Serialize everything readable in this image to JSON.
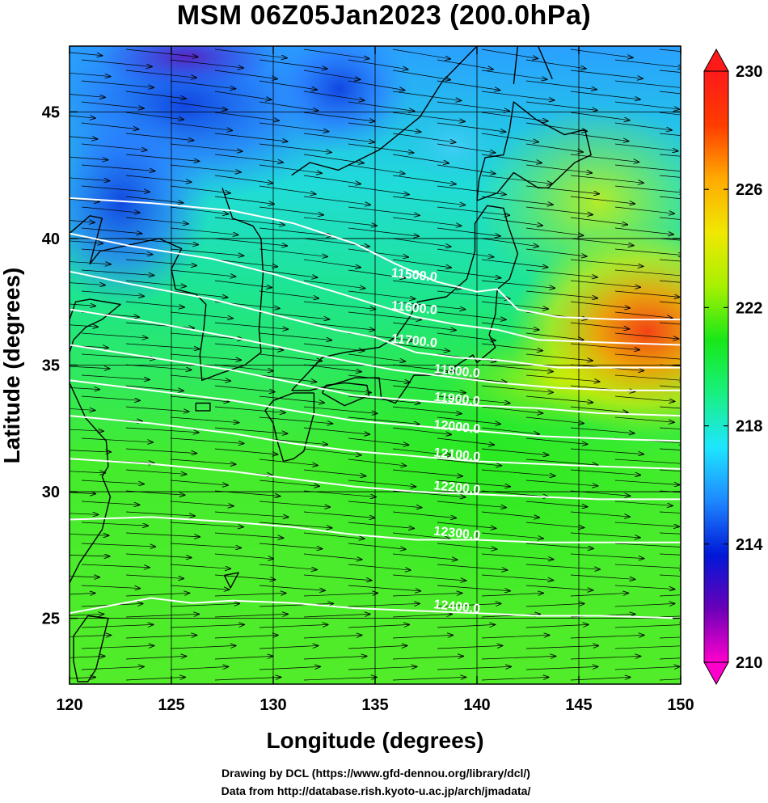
{
  "title": "MSM 06Z05Jan2023 (200.0hPa)",
  "credits": [
    "Drawing by DCL (https://www.gfd-dennou.org/library/dcl/)",
    "Data from http://database.rish.kyoto-u.ac.jp/arch/jmadata/"
  ],
  "map": {
    "xlabel": "Longitude (degrees)",
    "ylabel": "Latitude  (degrees)",
    "xlim": [
      120,
      150
    ],
    "ylim": [
      22.4,
      47.6
    ],
    "xticks": [
      120,
      125,
      130,
      135,
      140,
      145,
      150
    ],
    "yticks": [
      25,
      30,
      35,
      40,
      45
    ],
    "colorbar": {
      "min": 210,
      "max": 230,
      "ticks": [
        "210",
        "214",
        "218",
        "222",
        "226",
        "230"
      ],
      "colors": [
        "#ff00cc",
        "#6a00b8",
        "#0018d8",
        "#1e88ff",
        "#1ee6ff",
        "#18f080",
        "#18e818",
        "#a8f000",
        "#f0e800",
        "#ffaa00",
        "#ff3c00",
        "#ff1a1a"
      ]
    },
    "contours": [
      {
        "label": "11500.0",
        "pts": [
          [
            120,
            41.6
          ],
          [
            124,
            41.4
          ],
          [
            128,
            41.1
          ],
          [
            131,
            40.6
          ],
          [
            134,
            39.8
          ],
          [
            136,
            39.0
          ],
          [
            138,
            38.3
          ],
          [
            140,
            37.9
          ],
          [
            141,
            38.0
          ],
          [
            142,
            37.2
          ],
          [
            144,
            36.9
          ],
          [
            147,
            36.8
          ],
          [
            150,
            36.8
          ]
        ],
        "lpos": [
          136.9,
          38.4
        ]
      },
      {
        "label": "11600.0",
        "pts": [
          [
            120,
            40.2
          ],
          [
            123,
            39.7
          ],
          [
            127,
            39.2
          ],
          [
            130,
            38.6
          ],
          [
            133,
            37.9
          ],
          [
            135,
            37.4
          ],
          [
            137,
            36.9
          ],
          [
            139,
            36.6
          ],
          [
            141,
            36.4
          ],
          [
            143,
            36.0
          ],
          [
            146,
            35.9
          ],
          [
            150,
            35.8
          ]
        ],
        "lpos": [
          136.9,
          37.1
        ]
      },
      {
        "label": "11700.0",
        "pts": [
          [
            120,
            38.7
          ],
          [
            123,
            38.2
          ],
          [
            127,
            37.6
          ],
          [
            130,
            37.0
          ],
          [
            133,
            36.4
          ],
          [
            135,
            36.1
          ],
          [
            137,
            35.5
          ],
          [
            139,
            35.3
          ],
          [
            141,
            35.2
          ],
          [
            144,
            34.9
          ],
          [
            147,
            34.9
          ],
          [
            150,
            34.9
          ]
        ],
        "lpos": [
          136.9,
          35.8
        ]
      },
      {
        "label": "11800.0",
        "pts": [
          [
            120,
            37.2
          ],
          [
            124,
            36.7
          ],
          [
            128,
            36.1
          ],
          [
            131,
            35.6
          ],
          [
            134,
            35.1
          ],
          [
            136,
            34.8
          ],
          [
            138,
            34.6
          ],
          [
            141,
            34.3
          ],
          [
            144,
            34.1
          ],
          [
            147,
            34.0
          ],
          [
            150,
            34.0
          ]
        ],
        "lpos": [
          139.0,
          34.6
        ]
      },
      {
        "label": "11900.0",
        "pts": [
          [
            120,
            35.8
          ],
          [
            124,
            35.3
          ],
          [
            128,
            34.8
          ],
          [
            131,
            34.3
          ],
          [
            134,
            33.8
          ],
          [
            137,
            33.6
          ],
          [
            140,
            33.4
          ],
          [
            143,
            33.3
          ],
          [
            146,
            33.1
          ],
          [
            150,
            33.0
          ]
        ],
        "lpos": [
          139.0,
          33.5
        ]
      },
      {
        "label": "12000.0",
        "pts": [
          [
            120,
            34.4
          ],
          [
            124,
            34.0
          ],
          [
            128,
            33.6
          ],
          [
            131,
            33.2
          ],
          [
            134,
            32.8
          ],
          [
            137,
            32.6
          ],
          [
            140,
            32.4
          ],
          [
            143,
            32.2
          ],
          [
            146,
            32.1
          ],
          [
            150,
            32.0
          ]
        ],
        "lpos": [
          139.0,
          32.4
        ]
      },
      {
        "label": "12100.0",
        "pts": [
          [
            120,
            33.0
          ],
          [
            124,
            32.7
          ],
          [
            128,
            32.3
          ],
          [
            131,
            31.9
          ],
          [
            134,
            31.6
          ],
          [
            137,
            31.4
          ],
          [
            140,
            31.2
          ],
          [
            143,
            31.1
          ],
          [
            146,
            31.0
          ],
          [
            150,
            30.9
          ]
        ],
        "lpos": [
          139.0,
          31.3
        ]
      },
      {
        "label": "12200.0",
        "pts": [
          [
            120,
            31.3
          ],
          [
            124,
            31.1
          ],
          [
            128,
            30.8
          ],
          [
            131,
            30.5
          ],
          [
            134,
            30.2
          ],
          [
            137,
            30.0
          ],
          [
            140,
            29.9
          ],
          [
            143,
            29.8
          ],
          [
            146,
            29.7
          ],
          [
            150,
            29.7
          ]
        ],
        "lpos": [
          139.0,
          30.0
        ]
      },
      {
        "label": "12300.0",
        "pts": [
          [
            120,
            28.9
          ],
          [
            124,
            29.0
          ],
          [
            128,
            28.8
          ],
          [
            131,
            28.6
          ],
          [
            134,
            28.3
          ],
          [
            137,
            28.1
          ],
          [
            140,
            28.1
          ],
          [
            143,
            28.0
          ],
          [
            146,
            28.0
          ],
          [
            150,
            28.0
          ]
        ],
        "lpos": [
          139.0,
          28.2
        ]
      },
      {
        "label": "12400.0",
        "pts": [
          [
            120,
            25.2
          ],
          [
            122,
            25.5
          ],
          [
            124,
            25.8
          ],
          [
            126,
            25.6
          ],
          [
            128,
            25.7
          ],
          [
            131,
            25.6
          ],
          [
            134,
            25.4
          ],
          [
            137,
            25.3
          ],
          [
            140,
            25.2
          ],
          [
            143,
            25.1
          ],
          [
            146,
            25.1
          ],
          [
            150,
            25.0
          ]
        ],
        "lpos": [
          139.0,
          25.3
        ]
      }
    ],
    "coast": [
      [
        [
          132.0,
          33.9
        ],
        [
          131.0,
          33.9
        ],
        [
          130.0,
          33.6
        ],
        [
          129.6,
          33.2
        ],
        [
          130.0,
          32.7
        ],
        [
          130.2,
          32.0
        ],
        [
          130.5,
          31.2
        ],
        [
          131.0,
          31.3
        ],
        [
          131.5,
          31.6
        ],
        [
          131.8,
          32.5
        ],
        [
          132.0,
          33.1
        ],
        [
          132.0,
          33.9
        ]
      ],
      [
        [
          132.4,
          33.9
        ],
        [
          133.5,
          33.4
        ],
        [
          134.7,
          33.8
        ],
        [
          134.6,
          34.2
        ],
        [
          133.5,
          34.3
        ],
        [
          132.6,
          34.2
        ],
        [
          132.4,
          33.9
        ]
      ],
      [
        [
          130.9,
          34.0
        ],
        [
          131.6,
          34.6
        ],
        [
          132.4,
          35.3
        ],
        [
          133.5,
          35.5
        ],
        [
          135.2,
          35.7
        ],
        [
          136.0,
          36.1
        ],
        [
          136.7,
          36.9
        ],
        [
          137.1,
          37.5
        ],
        [
          138.5,
          37.7
        ],
        [
          139.5,
          38.4
        ],
        [
          139.9,
          39.5
        ],
        [
          139.9,
          40.6
        ],
        [
          140.5,
          41.3
        ],
        [
          141.3,
          41.2
        ],
        [
          141.5,
          40.6
        ],
        [
          142.0,
          39.4
        ],
        [
          141.6,
          38.4
        ],
        [
          141.0,
          38.0
        ],
        [
          140.9,
          37.0
        ],
        [
          140.6,
          36.2
        ],
        [
          140.9,
          35.7
        ],
        [
          140.0,
          35.1
        ],
        [
          139.8,
          35.4
        ],
        [
          139.2,
          35.1
        ],
        [
          138.5,
          34.7
        ],
        [
          137.7,
          34.6
        ],
        [
          136.9,
          34.6
        ],
        [
          136.6,
          34.2
        ],
        [
          136.0,
          33.5
        ],
        [
          135.3,
          33.7
        ],
        [
          135.2,
          34.5
        ],
        [
          134.0,
          34.5
        ],
        [
          132.8,
          34.2
        ],
        [
          131.8,
          34.0
        ],
        [
          130.9,
          34.0
        ]
      ],
      [
        [
          140.0,
          41.5
        ],
        [
          140.1,
          42.3
        ],
        [
          140.4,
          43.2
        ],
        [
          141.3,
          43.3
        ],
        [
          141.6,
          44.3
        ],
        [
          141.8,
          45.4
        ],
        [
          142.9,
          44.7
        ],
        [
          144.3,
          44.1
        ],
        [
          145.3,
          44.3
        ],
        [
          145.6,
          43.3
        ],
        [
          144.8,
          43.0
        ],
        [
          143.5,
          42.0
        ],
        [
          143.0,
          42.0
        ],
        [
          141.8,
          42.6
        ],
        [
          141.0,
          41.8
        ],
        [
          140.0,
          41.5
        ]
      ],
      [
        [
          127.5,
          42.0
        ],
        [
          128.0,
          40.8
        ],
        [
          129.0,
          40.5
        ],
        [
          129.4,
          40.0
        ],
        [
          129.5,
          38.6
        ],
        [
          129.4,
          37.5
        ],
        [
          129.3,
          36.4
        ],
        [
          129.4,
          35.5
        ],
        [
          128.6,
          35.0
        ],
        [
          127.5,
          34.7
        ],
        [
          126.5,
          34.4
        ],
        [
          126.4,
          35.4
        ],
        [
          126.6,
          36.5
        ],
        [
          126.7,
          37.4
        ],
        [
          126.2,
          37.8
        ],
        [
          125.2,
          38.0
        ],
        [
          125.0,
          38.8
        ],
        [
          125.5,
          39.6
        ],
        [
          124.4,
          40.0
        ],
        [
          121.5,
          39.5
        ],
        [
          121.0,
          39.0
        ],
        [
          121.6,
          40.8
        ],
        [
          121.0,
          40.9
        ],
        [
          120.0,
          40.2
        ]
      ],
      [
        [
          120.0,
          36.8
        ],
        [
          120.3,
          37.5
        ],
        [
          121.0,
          37.6
        ],
        [
          122.5,
          37.4
        ],
        [
          121.6,
          36.8
        ],
        [
          120.8,
          36.5
        ],
        [
          120.2,
          36.0
        ],
        [
          120.0,
          35.5
        ]
      ],
      [
        [
          120.0,
          34.3
        ],
        [
          120.8,
          32.9
        ],
        [
          121.8,
          32.0
        ],
        [
          121.9,
          31.0
        ],
        [
          121.6,
          30.6
        ],
        [
          122.0,
          29.8
        ],
        [
          121.6,
          28.5
        ],
        [
          120.5,
          27.2
        ],
        [
          120.0,
          26.4
        ]
      ],
      [
        [
          120.9,
          25.1
        ],
        [
          121.9,
          25.0
        ],
        [
          121.6,
          24.0
        ],
        [
          121.3,
          23.0
        ],
        [
          120.9,
          22.5
        ],
        [
          120.4,
          22.5
        ],
        [
          120.2,
          23.3
        ],
        [
          120.2,
          24.3
        ],
        [
          120.9,
          25.1
        ]
      ],
      [
        [
          126.2,
          33.5
        ],
        [
          126.9,
          33.5
        ],
        [
          126.9,
          33.2
        ],
        [
          126.2,
          33.2
        ],
        [
          126.2,
          33.5
        ]
      ],
      [
        [
          127.6,
          26.7
        ],
        [
          128.3,
          26.8
        ],
        [
          127.9,
          26.2
        ],
        [
          127.6,
          26.7
        ]
      ],
      [
        [
          130.9,
          42.5
        ],
        [
          131.8,
          43.0
        ],
        [
          133.2,
          42.7
        ],
        [
          135.2,
          43.5
        ],
        [
          137.2,
          44.8
        ],
        [
          138.3,
          46.2
        ],
        [
          140.0,
          47.6
        ]
      ],
      [
        [
          141.8,
          46.1
        ],
        [
          142.0,
          47.6
        ]
      ],
      [
        [
          143.7,
          46.3
        ],
        [
          143.0,
          47.6
        ]
      ]
    ]
  }
}
